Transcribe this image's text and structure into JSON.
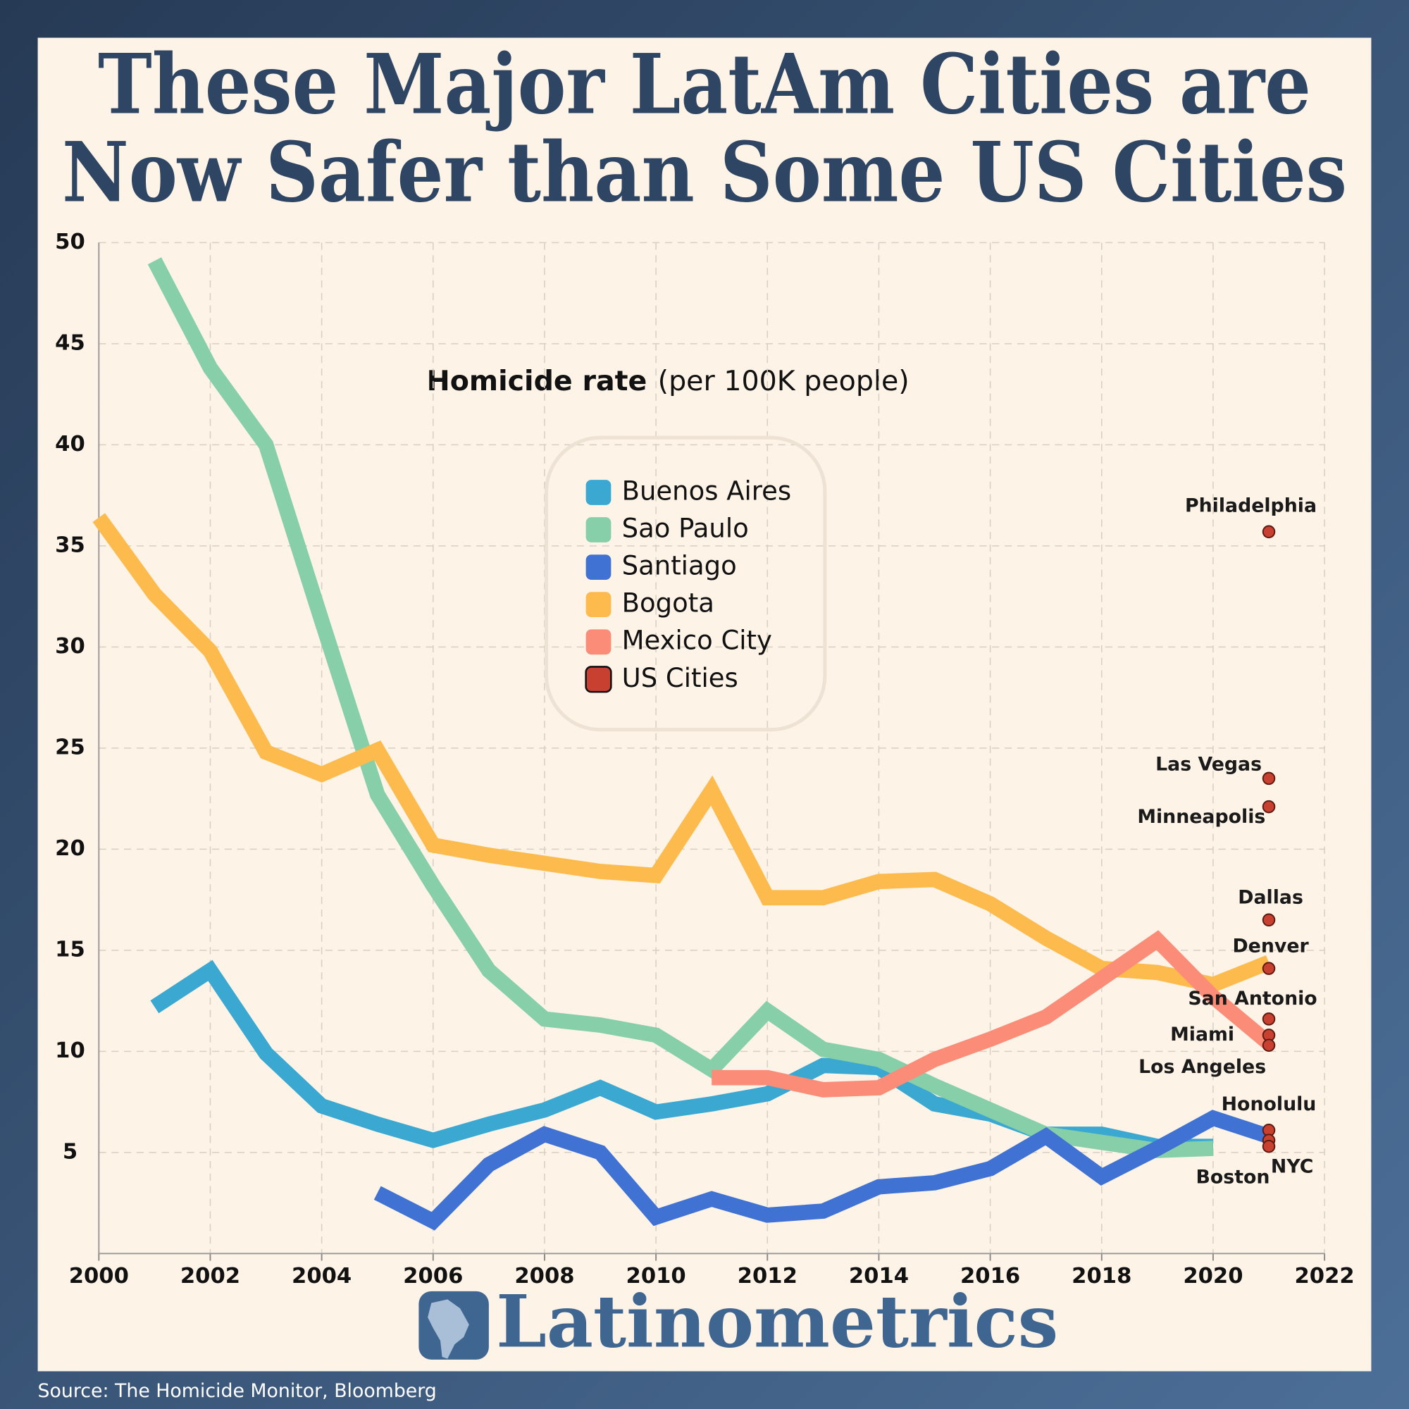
{
  "chart_data": {
    "type": "line",
    "title": [
      "These Major LatAm Cities are",
      "Now Safer than Some US Cities"
    ],
    "subtitle": {
      "bold": "Homicide rate",
      "rest": "(per 100K people)"
    },
    "x": [
      2000,
      2001,
      2002,
      2003,
      2004,
      2005,
      2006,
      2007,
      2008,
      2009,
      2010,
      2011,
      2012,
      2013,
      2014,
      2015,
      2016,
      2017,
      2018,
      2019,
      2020,
      2021
    ],
    "xlim": [
      2000,
      2022
    ],
    "xticks": [
      2000,
      2002,
      2004,
      2006,
      2008,
      2010,
      2012,
      2014,
      2016,
      2018,
      2020,
      2022
    ],
    "ylim": [
      0,
      50
    ],
    "yticks": [
      5,
      10,
      15,
      20,
      25,
      30,
      35,
      40,
      45,
      50
    ],
    "grid": true,
    "series": [
      {
        "name": "Buenos Aires",
        "color": "#3aa8d0",
        "values": [
          null,
          12.2,
          14,
          9.9,
          7.3,
          6.4,
          5.6,
          6.4,
          7.1,
          8.2,
          7.0,
          7.4,
          7.9,
          9.3,
          9.2,
          7.4,
          6.9,
          5.9,
          5.9,
          5.3,
          5.3,
          null
        ]
      },
      {
        "name": "Sao Paulo",
        "color": "#86cfa8",
        "values": [
          null,
          49.1,
          43.8,
          40,
          31.3,
          22.7,
          18.2,
          14,
          11.6,
          11.3,
          10.8,
          9.1,
          12,
          10.1,
          9.6,
          8.3,
          7.1,
          5.9,
          5.5,
          5.1,
          5.2,
          null
        ]
      },
      {
        "name": "Santiago",
        "color": "#3f72d2",
        "values": [
          null,
          null,
          null,
          null,
          null,
          3.0,
          1.6,
          4.4,
          5.9,
          5.0,
          1.8,
          2.7,
          1.9,
          2.1,
          3.3,
          3.5,
          4.2,
          5.8,
          3.8,
          5.2,
          6.7,
          5.8
        ]
      },
      {
        "name": "Bogota",
        "color": "#fdba4d",
        "values": [
          36.4,
          32.6,
          29.8,
          24.8,
          23.7,
          24.9,
          20.2,
          19.7,
          19.3,
          18.9,
          18.7,
          22.9,
          17.6,
          17.6,
          18.4,
          18.5,
          17.3,
          15.6,
          14.1,
          13.9,
          13.3,
          14.4
        ]
      },
      {
        "name": "Mexico City",
        "color": "#fb8c78",
        "values": [
          null,
          null,
          null,
          null,
          null,
          null,
          null,
          null,
          null,
          null,
          null,
          8.7,
          8.7,
          8.1,
          8.2,
          9.6,
          10.6,
          11.7,
          13.6,
          15.5,
          12.7,
          10.4
        ]
      }
    ],
    "points": {
      "name": "US Cities",
      "color": "#c84030",
      "x": 2021,
      "labels": [
        "Philadelphia",
        "Las Vegas",
        "Minneapolis",
        "Dallas",
        "Denver",
        "San Antonio",
        "Miami",
        "Los Angeles",
        "Honolulu",
        "NYC",
        "Boston"
      ],
      "values": [
        35.7,
        23.5,
        22.1,
        16.5,
        14.1,
        11.6,
        10.8,
        10.3,
        6.1,
        5.6,
        5.3
      ]
    }
  },
  "brand": "Latinometrics",
  "source": "Source: The Homicide Monitor, Bloomberg"
}
